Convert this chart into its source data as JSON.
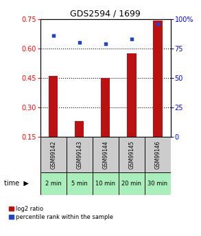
{
  "title": "GDS2594 / 1699",
  "samples": [
    "GSM99142",
    "GSM99143",
    "GSM99144",
    "GSM99145",
    "GSM99146"
  ],
  "time_labels": [
    "2 min",
    "5 min",
    "10 min",
    "20 min",
    "30 min"
  ],
  "log2_ratio": [
    0.46,
    0.23,
    0.45,
    0.575,
    0.74
  ],
  "percentile_rank": [
    86,
    80,
    79,
    83,
    96
  ],
  "left_ylim": [
    0.15,
    0.75
  ],
  "left_yticks": [
    0.15,
    0.3,
    0.45,
    0.6,
    0.75
  ],
  "right_ylim": [
    0,
    100
  ],
  "right_yticks": [
    0,
    25,
    50,
    75,
    100
  ],
  "bar_color": "#bb1111",
  "scatter_color": "#2244cc",
  "sample_box_color": "#cccccc",
  "time_box_color": "#aaeebb",
  "legend_red_label": "log2 ratio",
  "legend_blue_label": "percentile rank within the sample",
  "time_label": "time"
}
